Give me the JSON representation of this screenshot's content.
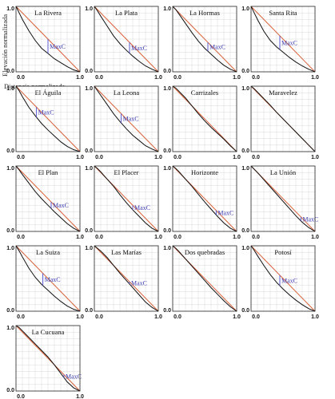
{
  "figure": {
    "ylabel": "Elevación normalizada",
    "xlabel": "Distancia normalizada",
    "colors": {
      "curve": "#111111",
      "diagonal": "#d9623b",
      "grid": "#cfcfcf",
      "maxc": "#5a5ad0"
    }
  },
  "chart_data": [
    {
      "type": "line",
      "title": "La Rivera",
      "maxc_label": "MaxC",
      "xlim": [
        0,
        1
      ],
      "ylim": [
        0,
        1
      ],
      "xticks": [
        "0.0",
        "1.0"
      ],
      "yticks": [
        "0.0",
        "1.0"
      ],
      "grid": true,
      "series": [
        {
          "x": [
            0,
            0.05,
            0.1,
            0.2,
            0.3,
            0.4,
            0.5,
            0.6,
            0.7,
            0.8,
            0.9,
            1.0
          ],
          "y": [
            1,
            0.9,
            0.8,
            0.63,
            0.48,
            0.36,
            0.28,
            0.2,
            0.14,
            0.08,
            0.03,
            0
          ]
        }
      ],
      "diagonal": true,
      "maxc_x": 0.5
    },
    {
      "type": "line",
      "title": "La Plata",
      "maxc_label": "MaxC",
      "xlim": [
        0,
        1
      ],
      "ylim": [
        0,
        1
      ],
      "xticks": [
        "0.0",
        "1.0"
      ],
      "yticks": [
        "0.0",
        "1.0"
      ],
      "grid": true,
      "series": [
        {
          "x": [
            0,
            0.05,
            0.1,
            0.2,
            0.3,
            0.4,
            0.5,
            0.6,
            0.7,
            0.8,
            0.9,
            1.0
          ],
          "y": [
            1,
            0.93,
            0.85,
            0.7,
            0.55,
            0.43,
            0.33,
            0.24,
            0.16,
            0.09,
            0.04,
            0
          ]
        }
      ],
      "diagonal": true,
      "maxc_x": 0.55
    },
    {
      "type": "line",
      "title": "La Hormas",
      "maxc_label": "MaxC",
      "xlim": [
        0,
        1
      ],
      "ylim": [
        0,
        1
      ],
      "xticks": [
        "0.0",
        "1.0"
      ],
      "yticks": [
        "0.0",
        "1.0"
      ],
      "grid": true,
      "series": [
        {
          "x": [
            0,
            0.05,
            0.1,
            0.2,
            0.3,
            0.4,
            0.5,
            0.6,
            0.7,
            0.8,
            0.9,
            1.0
          ],
          "y": [
            1,
            0.95,
            0.88,
            0.74,
            0.6,
            0.47,
            0.36,
            0.27,
            0.18,
            0.1,
            0.04,
            0
          ]
        }
      ],
      "diagonal": true,
      "maxc_x": 0.55
    },
    {
      "type": "line",
      "title": "Santa Rita",
      "maxc_label": "MaxC",
      "xlim": [
        0,
        1
      ],
      "ylim": [
        0,
        1
      ],
      "xticks": [
        "0.0",
        "1.0"
      ],
      "yticks": [
        "0.0",
        "1.0"
      ],
      "grid": true,
      "series": [
        {
          "x": [
            0,
            0.05,
            0.1,
            0.2,
            0.3,
            0.4,
            0.5,
            0.6,
            0.7,
            0.8,
            0.9,
            1.0
          ],
          "y": [
            1,
            0.9,
            0.8,
            0.62,
            0.48,
            0.38,
            0.3,
            0.22,
            0.15,
            0.09,
            0.04,
            0
          ]
        }
      ],
      "diagonal": true,
      "maxc_x": 0.45
    },
    {
      "type": "line",
      "title": "El Águila",
      "maxc_label": "MaxC",
      "xlim": [
        0,
        1
      ],
      "ylim": [
        0,
        1
      ],
      "xticks": [
        "0.0",
        "1.0"
      ],
      "yticks": [
        "0.0",
        "1.0"
      ],
      "grid": true,
      "series": [
        {
          "x": [
            0,
            0.05,
            0.1,
            0.2,
            0.3,
            0.4,
            0.5,
            0.6,
            0.7,
            0.8,
            0.9,
            1.0
          ],
          "y": [
            1,
            0.93,
            0.84,
            0.68,
            0.55,
            0.43,
            0.33,
            0.24,
            0.15,
            0.08,
            0.03,
            0
          ]
        }
      ],
      "diagonal": true,
      "maxc_x": 0.32
    },
    {
      "type": "line",
      "title": "La Leona",
      "maxc_label": "MaxC",
      "xlim": [
        0,
        1
      ],
      "ylim": [
        0,
        1
      ],
      "xticks": [
        "0.0",
        "1.0"
      ],
      "yticks": [
        "0.0",
        "1.0"
      ],
      "grid": true,
      "series": [
        {
          "x": [
            0,
            0.05,
            0.1,
            0.2,
            0.3,
            0.4,
            0.5,
            0.6,
            0.7,
            0.8,
            0.9,
            1.0
          ],
          "y": [
            1,
            0.93,
            0.86,
            0.72,
            0.58,
            0.46,
            0.35,
            0.25,
            0.17,
            0.09,
            0.04,
            0
          ]
        }
      ],
      "diagonal": true,
      "maxc_x": 0.42
    },
    {
      "type": "line",
      "title": "Carrizales",
      "maxc_label": "",
      "xlim": [
        0,
        1
      ],
      "ylim": [
        0,
        1
      ],
      "xticks": [
        "0.0",
        "1.0"
      ],
      "yticks": [
        "0.0",
        "1.0"
      ],
      "grid": true,
      "series": [
        {
          "x": [
            0,
            0.05,
            0.1,
            0.2,
            0.3,
            0.4,
            0.5,
            0.6,
            0.7,
            0.8,
            0.9,
            1.0
          ],
          "y": [
            1,
            0.97,
            0.92,
            0.82,
            0.7,
            0.58,
            0.47,
            0.37,
            0.28,
            0.19,
            0.09,
            0
          ]
        }
      ],
      "diagonal": true,
      "maxc_x": null
    },
    {
      "type": "line",
      "title": "Maravelez",
      "maxc_label": "",
      "xlim": [
        0,
        1
      ],
      "ylim": [
        0,
        1
      ],
      "xticks": [
        "0.0",
        "1.0"
      ],
      "yticks": [
        "0.0",
        "1.0"
      ],
      "grid": true,
      "series": [
        {
          "x": [
            0,
            0.05,
            0.1,
            0.2,
            0.3,
            0.4,
            0.5,
            0.6,
            0.7,
            0.8,
            0.9,
            1.0
          ],
          "y": [
            1,
            0.96,
            0.91,
            0.81,
            0.71,
            0.6,
            0.5,
            0.4,
            0.3,
            0.2,
            0.1,
            0
          ]
        }
      ],
      "diagonal": true,
      "maxc_x": null
    },
    {
      "type": "line",
      "title": "El Plan",
      "maxc_label": "MaxC",
      "xlim": [
        0,
        1
      ],
      "ylim": [
        0,
        1
      ],
      "xticks": [
        "0.0",
        "1.0"
      ],
      "yticks": [
        "0.0",
        "1.0"
      ],
      "grid": true,
      "series": [
        {
          "x": [
            0,
            0.05,
            0.1,
            0.2,
            0.3,
            0.4,
            0.5,
            0.6,
            0.7,
            0.8,
            0.9,
            1.0
          ],
          "y": [
            1,
            0.94,
            0.87,
            0.74,
            0.61,
            0.5,
            0.4,
            0.3,
            0.21,
            0.12,
            0.05,
            0
          ]
        }
      ],
      "diagonal": true,
      "maxc_x": 0.55
    },
    {
      "type": "line",
      "title": "El Placer",
      "maxc_label": "MaxC",
      "xlim": [
        0,
        1
      ],
      "ylim": [
        0,
        1
      ],
      "xticks": [
        "0.0",
        "1.0"
      ],
      "yticks": [
        "0.0",
        "1.0"
      ],
      "grid": true,
      "series": [
        {
          "x": [
            0,
            0.05,
            0.1,
            0.2,
            0.3,
            0.4,
            0.5,
            0.6,
            0.7,
            0.8,
            0.9,
            1.0
          ],
          "y": [
            1,
            0.96,
            0.91,
            0.8,
            0.69,
            0.56,
            0.44,
            0.33,
            0.23,
            0.13,
            0.05,
            0
          ]
        }
      ],
      "diagonal": true,
      "maxc_x": 0.6
    },
    {
      "type": "line",
      "title": "Horizonte",
      "maxc_label": "MaxC",
      "xlim": [
        0,
        1
      ],
      "ylim": [
        0,
        1
      ],
      "xticks": [
        "0.0",
        "1.0"
      ],
      "yticks": [
        "0.0",
        "1.0"
      ],
      "grid": true,
      "series": [
        {
          "x": [
            0,
            0.05,
            0.1,
            0.2,
            0.3,
            0.4,
            0.5,
            0.6,
            0.7,
            0.8,
            0.9,
            1.0
          ],
          "y": [
            1,
            0.96,
            0.91,
            0.8,
            0.69,
            0.57,
            0.45,
            0.34,
            0.23,
            0.13,
            0.05,
            0
          ]
        }
      ],
      "diagonal": true,
      "maxc_x": 0.68
    },
    {
      "type": "line",
      "title": "La Unión",
      "maxc_label": "MaxC",
      "xlim": [
        0,
        1
      ],
      "ylim": [
        0,
        1
      ],
      "xticks": [
        "0.0",
        "1.0"
      ],
      "yticks": [
        "0.0",
        "1.0"
      ],
      "grid": true,
      "series": [
        {
          "x": [
            0,
            0.05,
            0.1,
            0.2,
            0.3,
            0.4,
            0.5,
            0.6,
            0.7,
            0.8,
            0.9,
            1.0
          ],
          "y": [
            1,
            0.95,
            0.9,
            0.79,
            0.68,
            0.57,
            0.46,
            0.35,
            0.24,
            0.14,
            0.06,
            0
          ]
        }
      ],
      "diagonal": true,
      "maxc_x": 0.78
    },
    {
      "type": "line",
      "title": "La Suiza",
      "maxc_label": "MaxC",
      "xlim": [
        0,
        1
      ],
      "ylim": [
        0,
        1
      ],
      "xticks": [
        "0.0",
        "1.0"
      ],
      "yticks": [
        "0.0",
        "1.0"
      ],
      "grid": true,
      "series": [
        {
          "x": [
            0,
            0.05,
            0.1,
            0.2,
            0.3,
            0.4,
            0.5,
            0.6,
            0.7,
            0.8,
            0.9,
            1.0
          ],
          "y": [
            1,
            0.92,
            0.83,
            0.66,
            0.52,
            0.41,
            0.32,
            0.23,
            0.15,
            0.08,
            0.03,
            0
          ]
        }
      ],
      "diagonal": true,
      "maxc_x": 0.42
    },
    {
      "type": "line",
      "title": "Las Marías",
      "maxc_label": "MaxC",
      "xlim": [
        0,
        1
      ],
      "ylim": [
        0,
        1
      ],
      "xticks": [
        "0.0",
        "1.0"
      ],
      "yticks": [
        "0.0",
        "1.0"
      ],
      "grid": true,
      "series": [
        {
          "x": [
            0,
            0.05,
            0.1,
            0.2,
            0.3,
            0.4,
            0.5,
            0.6,
            0.7,
            0.8,
            0.9,
            1.0
          ],
          "y": [
            1,
            0.96,
            0.92,
            0.82,
            0.7,
            0.58,
            0.47,
            0.36,
            0.25,
            0.14,
            0.06,
            0
          ]
        }
      ],
      "diagonal": true,
      "maxc_x": 0.55
    },
    {
      "type": "line",
      "title": "Dos quebradas",
      "maxc_label": "",
      "xlim": [
        0,
        1
      ],
      "ylim": [
        0,
        1
      ],
      "xticks": [
        "0.0",
        "1.0"
      ],
      "yticks": [
        "0.0",
        "1.0"
      ],
      "grid": true,
      "series": [
        {
          "x": [
            0,
            0.05,
            0.1,
            0.2,
            0.3,
            0.4,
            0.5,
            0.6,
            0.7,
            0.8,
            0.9,
            1.0
          ],
          "y": [
            1,
            0.96,
            0.91,
            0.8,
            0.69,
            0.58,
            0.47,
            0.36,
            0.26,
            0.16,
            0.07,
            0
          ]
        }
      ],
      "diagonal": true,
      "maxc_x": null
    },
    {
      "type": "line",
      "title": "Potosí",
      "maxc_label": "MaxC",
      "xlim": [
        0,
        1
      ],
      "ylim": [
        0,
        1
      ],
      "xticks": [
        "0.0",
        "1.0"
      ],
      "yticks": [
        "0.0",
        "1.0"
      ],
      "grid": true,
      "series": [
        {
          "x": [
            0,
            0.05,
            0.1,
            0.2,
            0.3,
            0.4,
            0.5,
            0.6,
            0.7,
            0.8,
            0.9,
            1.0
          ],
          "y": [
            1,
            0.93,
            0.85,
            0.7,
            0.56,
            0.44,
            0.34,
            0.25,
            0.17,
            0.1,
            0.04,
            0
          ]
        }
      ],
      "diagonal": true,
      "maxc_x": 0.45
    },
    {
      "type": "line",
      "title": "La Cucuana",
      "maxc_label": "MaxC",
      "xlim": [
        0,
        1
      ],
      "ylim": [
        0,
        1
      ],
      "xticks": [
        "0.0",
        "1.0"
      ],
      "yticks": [
        "0.0",
        "1.0"
      ],
      "grid": true,
      "series": [
        {
          "x": [
            0,
            0.05,
            0.1,
            0.2,
            0.3,
            0.4,
            0.5,
            0.6,
            0.7,
            0.8,
            0.9,
            1.0
          ],
          "y": [
            1,
            0.97,
            0.92,
            0.82,
            0.72,
            0.62,
            0.52,
            0.4,
            0.27,
            0.14,
            0.05,
            0
          ]
        }
      ],
      "diagonal": true,
      "maxc_x": 0.75
    }
  ]
}
